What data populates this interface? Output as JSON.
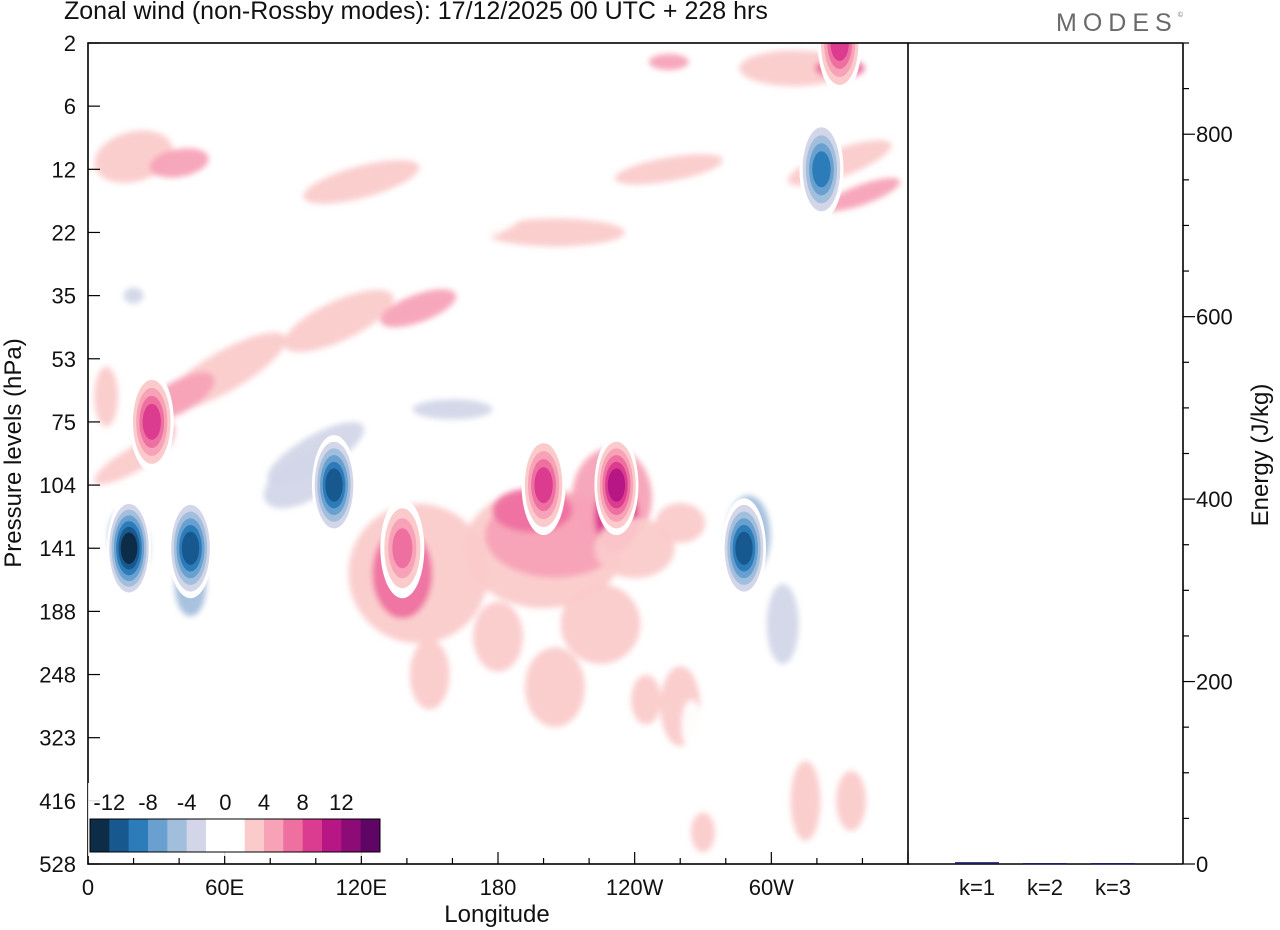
{
  "header": {
    "title": "Zonal wind (non-Rossby modes):  17/12/2025  00 UTC  + 228 hrs",
    "brand": "MODES",
    "brand_mark": "©"
  },
  "chart_data": [
    {
      "type": "heatmap",
      "title": "Zonal wind (non-Rossby modes)",
      "xlabel": "Longitude",
      "ylabel": "Pressure levels (hPa)",
      "x_ticks": [
        "0",
        "60E",
        "120E",
        "180",
        "120W",
        "60W"
      ],
      "x_tick_values": [
        0,
        60,
        120,
        180,
        240,
        300
      ],
      "xlim": [
        0,
        360
      ],
      "y_ticks": [
        "2",
        "6",
        "12",
        "22",
        "35",
        "53",
        "75",
        "104",
        "141",
        "188",
        "248",
        "323",
        "416",
        "528"
      ],
      "colorbar": {
        "tick_labels": [
          "-12",
          "-8",
          "-4",
          "0",
          "4",
          "8",
          "12"
        ],
        "levels": [
          -14,
          -12,
          -10,
          -8,
          -6,
          -4,
          -2,
          0,
          2,
          4,
          6,
          8,
          10,
          12,
          14
        ],
        "colors": [
          "#0c2c47",
          "#17588f",
          "#2d7cba",
          "#6aa0cf",
          "#a2bedd",
          "#d2d6e8",
          "#ffffff",
          "#ffffff",
          "#fbcbcb",
          "#f7a2b7",
          "#ee70a0",
          "#dc3c8f",
          "#b61784",
          "#8c0b76",
          "#5e0565"
        ]
      },
      "features": [
        {
          "lon": 18,
          "level": "141",
          "value": -14
        },
        {
          "lon": 45,
          "level": "141",
          "value": -12
        },
        {
          "lon": 108,
          "level": "104",
          "value": -12
        },
        {
          "lon": 288,
          "level": "141",
          "value": -12
        },
        {
          "lon": 28,
          "level": "75",
          "value": 10
        },
        {
          "lon": 232,
          "level": "104",
          "value": 12
        },
        {
          "lon": 200,
          "level": "104",
          "value": 10
        },
        {
          "lon": 138,
          "level": "141",
          "value": 8
        },
        {
          "lon": 322,
          "level": "12",
          "value": -10
        },
        {
          "lon": 330,
          "level": "2",
          "value": 10
        }
      ]
    },
    {
      "type": "bar",
      "ylabel": "Energy (J/kg)",
      "categories": [
        "k=1",
        "k=2",
        "k=3"
      ],
      "values": [
        2,
        1,
        1
      ],
      "ylim": [
        0,
        900
      ],
      "y_ticks": [
        "0",
        "200",
        "400",
        "600",
        "800"
      ],
      "y_tick_values": [
        0,
        200,
        400,
        600,
        800
      ],
      "bar_color": "#1a1a5e"
    }
  ]
}
